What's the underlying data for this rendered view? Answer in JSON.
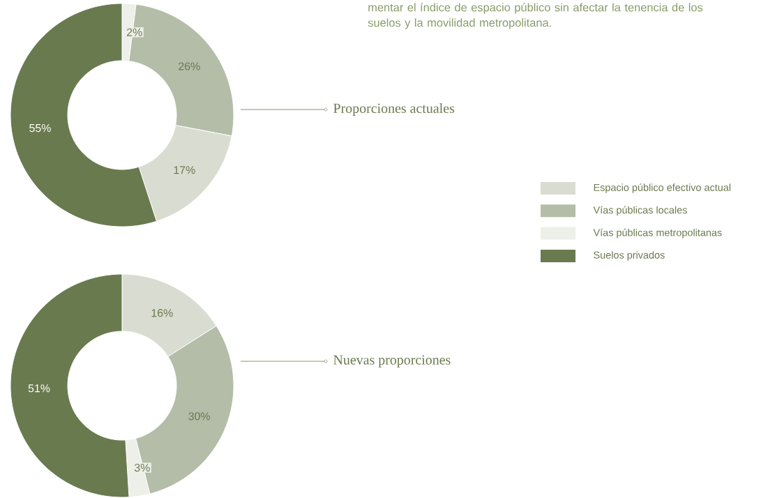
{
  "chart_data": [
    {
      "type": "donut",
      "title": "Proporciones actuales",
      "categories": [
        null,
        null,
        null,
        null
      ],
      "values": [
        2,
        26,
        17,
        55
      ],
      "value_labels": [
        "2%",
        "26%",
        "17%",
        "55%"
      ],
      "colors": [
        "#edefe9",
        "#b3bda8",
        "#d9ddd1",
        "#6a7a4f"
      ],
      "annotations": [
        "mentar el índice de espacio público sin afectar la tenencia de los suelos y la movilidad metropolitana."
      ]
    },
    {
      "type": "donut",
      "title": "Nuevas proporciones",
      "categories": [
        "Espacio público efectivo actual",
        "Vías públicas locales",
        "Vías públicas metropolitanas",
        "Suelos privados"
      ],
      "values": [
        16,
        30,
        3,
        51
      ],
      "value_labels": [
        "16%",
        "30%",
        "3%",
        "51%"
      ],
      "colors": [
        "#d9ddd1",
        "#b3bda8",
        "#edefe9",
        "#6a7a4f"
      ],
      "legend": "right"
    }
  ]
}
